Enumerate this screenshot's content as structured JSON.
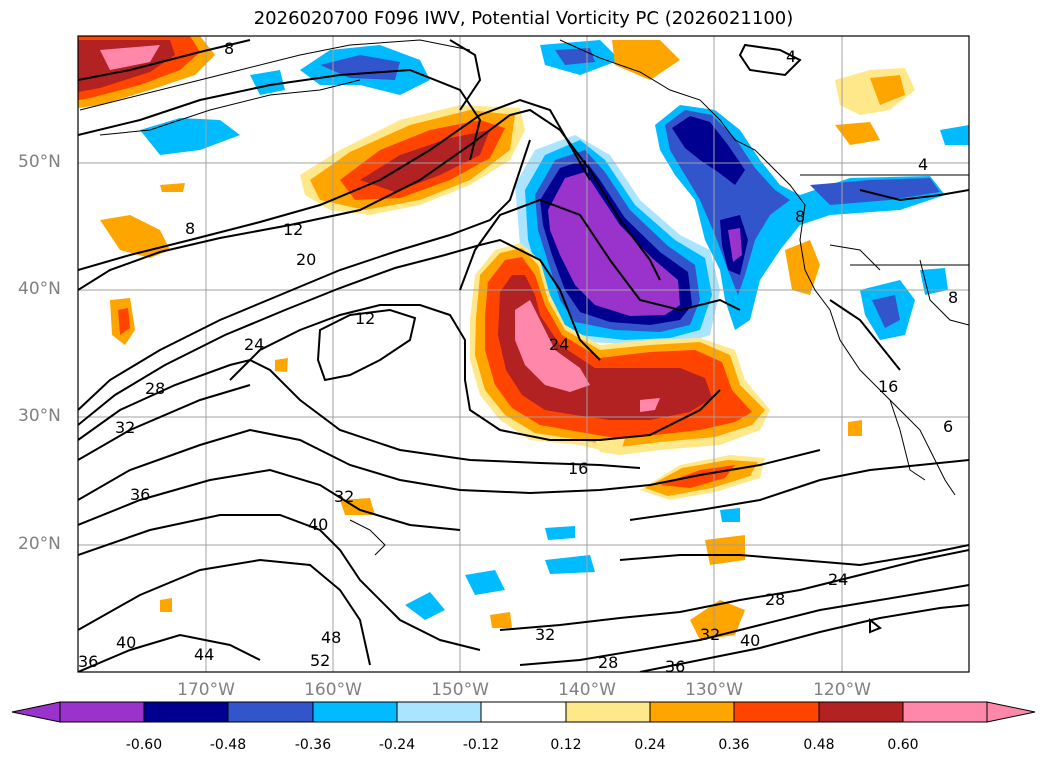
{
  "title": "2026020700 F096 IWV, Potential Vorticity PC (2026021100)",
  "lat_labels": [
    "50°N",
    "40°N",
    "30°N",
    "20°N"
  ],
  "lon_labels": [
    "170°W",
    "160°W",
    "150°W",
    "140°W",
    "130°W",
    "120°W"
  ],
  "colorbar": {
    "ticks": [
      "-0.60",
      "-0.48",
      "-0.36",
      "-0.24",
      "-0.12",
      "0.12",
      "0.24",
      "0.36",
      "0.48",
      "0.60"
    ],
    "colors": [
      "#9933cc",
      "#000090",
      "#3355cc",
      "#00bbff",
      "#aae4ff",
      "#ffffff",
      "#ffe88a",
      "#ffa500",
      "#ff4400",
      "#b22222",
      "#ff88aa"
    ]
  },
  "contour_labels": [
    "8",
    "8",
    "12",
    "20",
    "24",
    "28",
    "32",
    "36",
    "40",
    "32",
    "12",
    "24",
    "16",
    "24",
    "28",
    "32",
    "40",
    "28",
    "32",
    "36",
    "40",
    "44",
    "48",
    "52",
    "36",
    "4",
    "4",
    "8",
    "8",
    "16",
    "6"
  ]
}
